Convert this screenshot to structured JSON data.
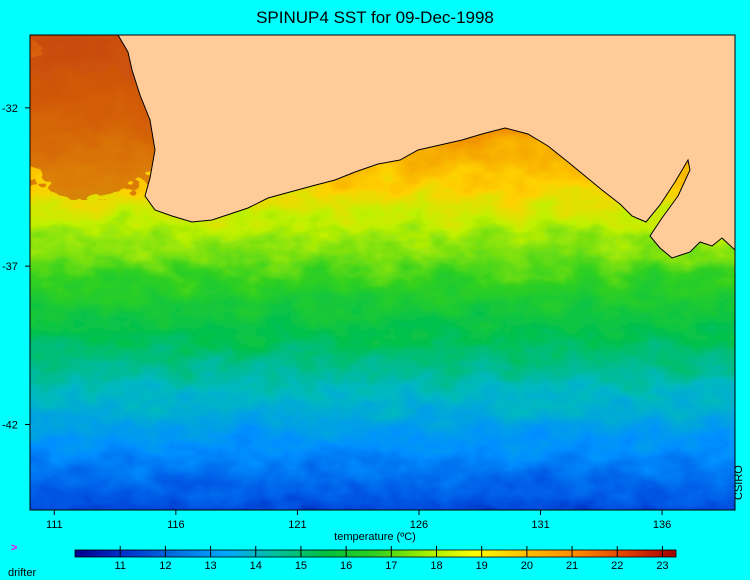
{
  "title": "SPINUP4 SST for 09-Dec-1998",
  "credit": "CSIRO",
  "map": {
    "lon_range": [
      110,
      139
    ],
    "lat_range": [
      -44.7,
      -29.7
    ],
    "lon_ticks": [
      111,
      116,
      121,
      126,
      131,
      136
    ],
    "lat_ticks": [
      -32,
      -37,
      -42
    ],
    "land_color": "#ffcc99"
  },
  "colorbar": {
    "title": "temperature (ºC)",
    "range": [
      10,
      23.3
    ],
    "ticks": [
      11,
      12,
      13,
      14,
      15,
      16,
      17,
      18,
      19,
      20,
      21,
      22,
      23
    ],
    "colors": [
      "#00008b",
      "#0033cc",
      "#0070e0",
      "#00a8ff",
      "#00c0a0",
      "#00c040",
      "#30d020",
      "#a0f000",
      "#ffff00",
      "#ffc000",
      "#ff8c00",
      "#e04000",
      "#a00000"
    ]
  },
  "legend": {
    "marker": ">",
    "label": "drifter"
  }
}
